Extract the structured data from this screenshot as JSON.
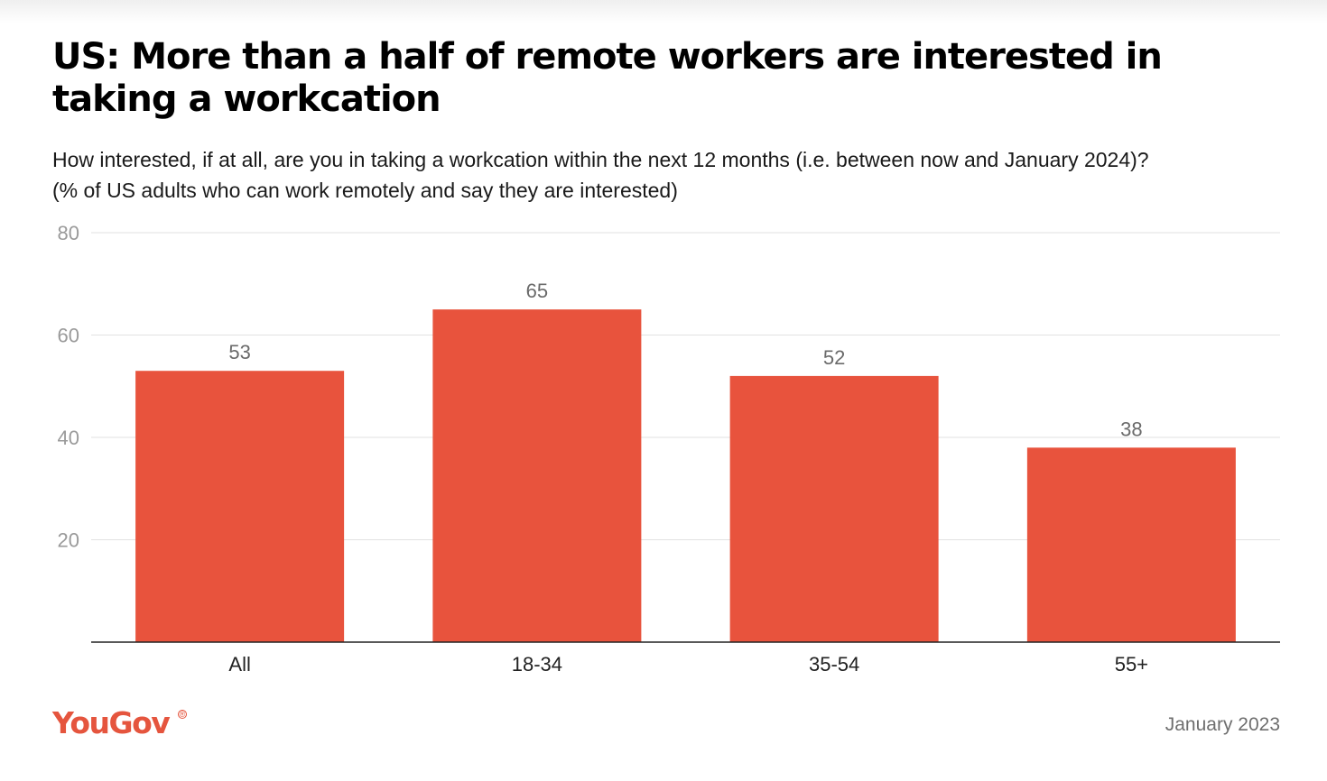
{
  "title": "US: More than a half of remote workers are interested in taking a workcation",
  "subtitle_line1": "How interested, if at all, are you in taking a workcation within the next 12 months (i.e. between now and January 2024)?",
  "subtitle_line2": "(% of US adults who can work remotely and say they are interested)",
  "brand": "YouGov",
  "brand_mark": "®",
  "date": "January 2023",
  "colors": {
    "bar": "#e8533d",
    "grid": "#e2e2e2",
    "axis": "#222222",
    "tick_label": "#9a9a9a",
    "value_label": "#6a6a6a",
    "category_label": "#222222"
  },
  "chart_data": {
    "type": "bar",
    "categories": [
      "All",
      "18-34",
      "35-54",
      "55+"
    ],
    "values": [
      53,
      65,
      52,
      38
    ],
    "ylim": [
      0,
      80
    ],
    "yticks": [
      20,
      40,
      60,
      80
    ],
    "grid": true,
    "data_labels": true
  }
}
